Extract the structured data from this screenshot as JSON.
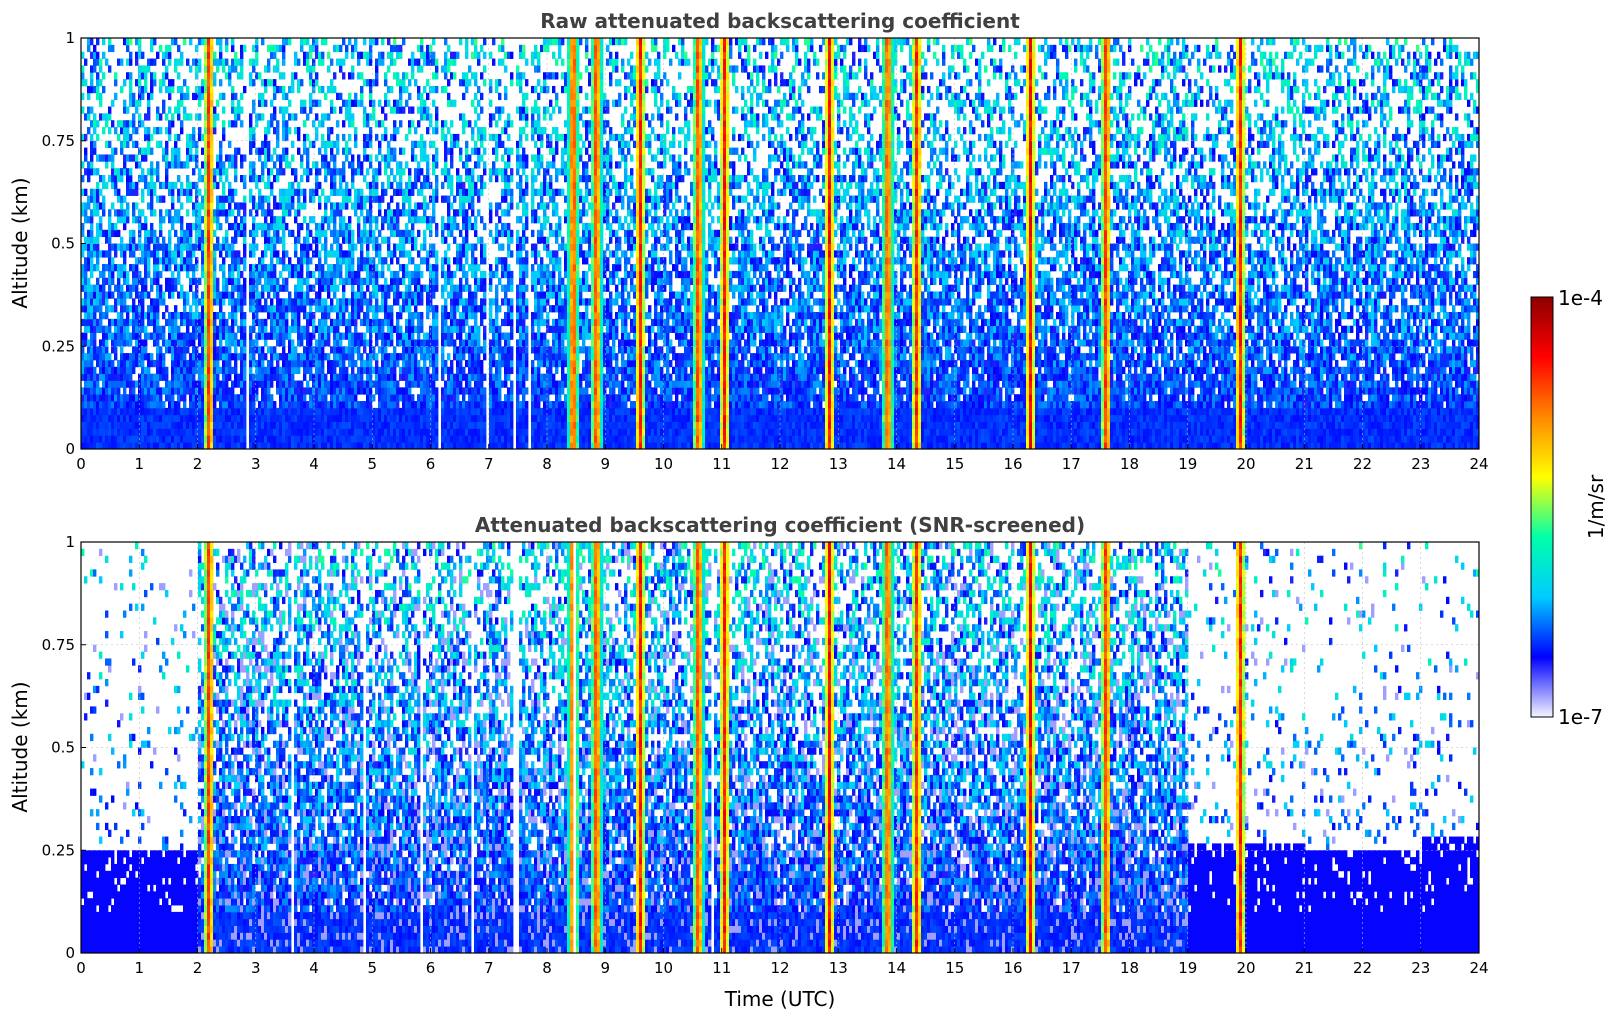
{
  "chart_data": [
    {
      "type": "heatmap",
      "title": "Raw attenuated backscattering coefficient",
      "xlabel": "",
      "ylabel": "Altitude (km)",
      "xlim": [
        0,
        24
      ],
      "ylim": [
        0,
        1
      ],
      "xticks": [
        "0",
        "1",
        "2",
        "3",
        "4",
        "5",
        "6",
        "7",
        "8",
        "9",
        "10",
        "11",
        "12",
        "13",
        "14",
        "15",
        "16",
        "17",
        "18",
        "19",
        "20",
        "21",
        "22",
        "23",
        "24"
      ],
      "yticks": [
        "0",
        "0.25",
        "0.5",
        "0.75",
        "1"
      ],
      "grid": true,
      "screened": false
    },
    {
      "type": "heatmap",
      "title": "Attenuated backscattering coefficient (SNR-screened)",
      "xlabel": "Time (UTC)",
      "ylabel": "Altitude (km)",
      "xlim": [
        0,
        24
      ],
      "ylim": [
        0,
        1
      ],
      "xticks": [
        "0",
        "1",
        "2",
        "3",
        "4",
        "5",
        "6",
        "7",
        "8",
        "9",
        "10",
        "11",
        "12",
        "13",
        "14",
        "15",
        "16",
        "17",
        "18",
        "19",
        "20",
        "21",
        "22",
        "23",
        "24"
      ],
      "yticks": [
        "0",
        "0.25",
        "0.5",
        "0.75",
        "1"
      ],
      "grid": true,
      "screened": true
    }
  ],
  "colorbar": {
    "label": "1/m/sr",
    "max_label": "1e-4",
    "min_label": "1e-7",
    "scale": "log",
    "range": [
      1e-07,
      0.0001
    ],
    "colormap": [
      "#f4f4ff",
      "#0000ff",
      "#00ccff",
      "#00ffaa",
      "#ffff00",
      "#ff8800",
      "#ff0000",
      "#8b0000"
    ]
  },
  "features": {
    "strong_plume_hours": [
      2.2,
      8.45,
      8.85,
      9.6,
      10.6,
      11.05,
      12.85,
      13.85,
      14.35,
      16.3,
      17.6,
      19.9
    ],
    "screened_low_level_top_km": [
      {
        "from": 0,
        "to": 2.0,
        "top": 0.25
      },
      {
        "from": 19.0,
        "to": 21.0,
        "top": 0.26
      },
      {
        "from": 21.0,
        "to": 23.0,
        "top": 0.25
      },
      {
        "from": 23.0,
        "to": 24.0,
        "top": 0.29
      }
    ]
  }
}
